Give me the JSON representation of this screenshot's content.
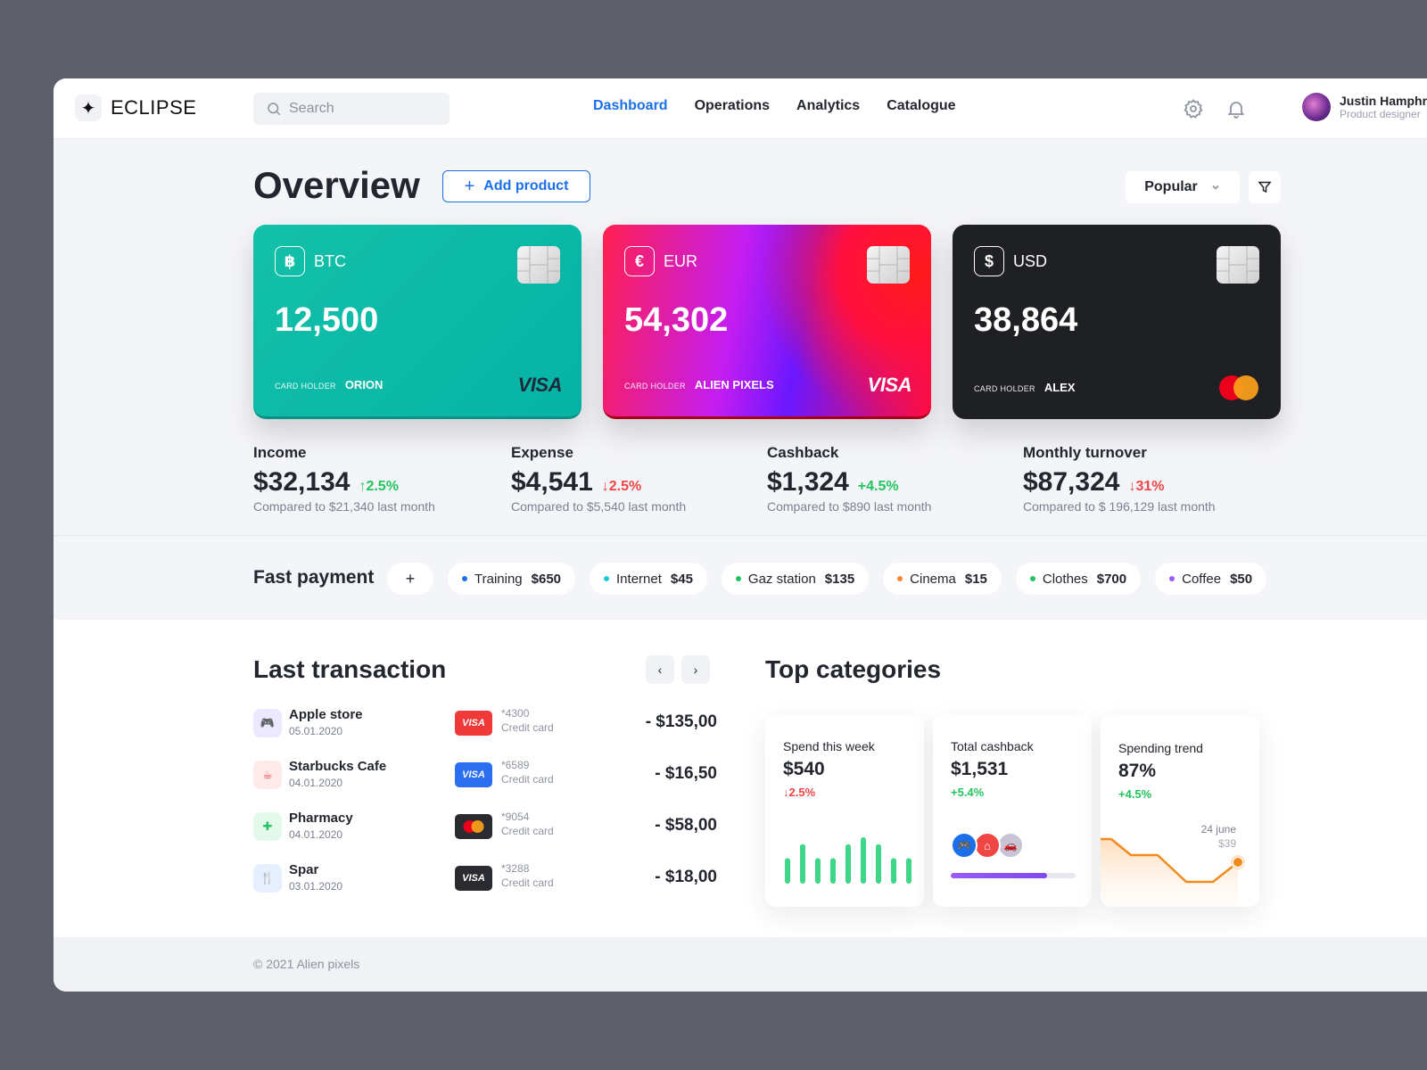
{
  "header": {
    "brand": "ECLIPSE",
    "search_placeholder": "Search",
    "nav": [
      "Dashboard",
      "Operations",
      "Analytics",
      "Catalogue"
    ],
    "user_name": "Justin Hamphrey",
    "user_role": "Product designer"
  },
  "overview": {
    "title": "Overview",
    "add_label": "Add product",
    "sort_label": "Popular"
  },
  "cards": [
    {
      "currency": "BTC",
      "symbol": "฿",
      "amount": "12,500",
      "holder_label": "CARD HOLDER",
      "holder": "ORION",
      "network": "VISA"
    },
    {
      "currency": "EUR",
      "symbol": "€",
      "amount": "54,302",
      "holder_label": "CARD HOLDER",
      "holder": "ALIEN PIXELS",
      "network": "VISA"
    },
    {
      "currency": "USD",
      "symbol": "$",
      "amount": "38,864",
      "holder_label": "CARD HOLDER",
      "holder": "ALEX",
      "network": "mastercard-icon"
    }
  ],
  "stats": [
    {
      "label": "Income",
      "value": "$32,134",
      "change": "2.5%",
      "dir": "up",
      "compare": "Compared to $21,340 last month"
    },
    {
      "label": "Expense",
      "value": "$4,541",
      "change": "2.5%",
      "dir": "down",
      "compare": "Compared to $5,540 last month"
    },
    {
      "label": "Cashback",
      "value": "$1,324",
      "change": "+4.5%",
      "dir": "up",
      "compare": "Compared to $890 last month"
    },
    {
      "label": "Monthly turnover",
      "value": "$87,324",
      "change": "31%",
      "dir": "down",
      "compare": "Compared to $ 196,129 last month"
    }
  ],
  "fast_payment": {
    "title": "Fast payment",
    "add": "+",
    "items": [
      {
        "name": "Training",
        "amount": "$650",
        "color": "#1b6fe8"
      },
      {
        "name": "Internet",
        "amount": "$45",
        "color": "#1fc8d8"
      },
      {
        "name": "Gaz station",
        "amount": "$135",
        "color": "#23c45e"
      },
      {
        "name": "Cinema",
        "amount": "$15",
        "color": "#f6863a"
      },
      {
        "name": "Clothes",
        "amount": "$700",
        "color": "#23c45e"
      },
      {
        "name": "Coffee",
        "amount": "$50",
        "color": "#9b5cf6"
      }
    ]
  },
  "transactions": {
    "title": "Last transaction",
    "prev": "‹",
    "next": "›",
    "rows": [
      {
        "name": "Apple store",
        "date": "05.01.2020",
        "card": "VISA",
        "number": "*4300",
        "type": "Credit card",
        "amount": "- $135,00",
        "icon": "gamepad-icon"
      },
      {
        "name": "Starbucks Cafe",
        "date": "04.01.2020",
        "card": "VISA",
        "number": "*6589",
        "type": "Credit card",
        "amount": "- $16,50",
        "icon": "coffee-icon"
      },
      {
        "name": "Pharmacy",
        "date": "04.01.2020",
        "card": "mastercard-icon",
        "number": "*9054",
        "type": "Credit card",
        "amount": "- $58,00",
        "icon": "medkit-icon"
      },
      {
        "name": "Spar",
        "date": "03.01.2020",
        "card": "VISA",
        "number": "*3288",
        "type": "Credit card",
        "amount": "- $18,00",
        "icon": "cutlery-icon"
      }
    ]
  },
  "categories": {
    "title": "Top categories",
    "items": [
      {
        "label": "Spend this week",
        "value": "$540",
        "change": "2.5%",
        "dir": "down"
      },
      {
        "label": "Total cashback",
        "value": "$1,531",
        "change": "+5.4%",
        "dir": "up",
        "progress": 0.77
      },
      {
        "label": "Spending trend",
        "value": "87%",
        "change": "+4.5%",
        "dir": "up",
        "point_date": "24 june",
        "point_value": "$39"
      }
    ],
    "week_bars": [
      0.55,
      0.85,
      0.55,
      0.55,
      0.85,
      1.0,
      0.85,
      0.55,
      0.55
    ]
  },
  "footer": "© 2021 Alien pixels"
}
